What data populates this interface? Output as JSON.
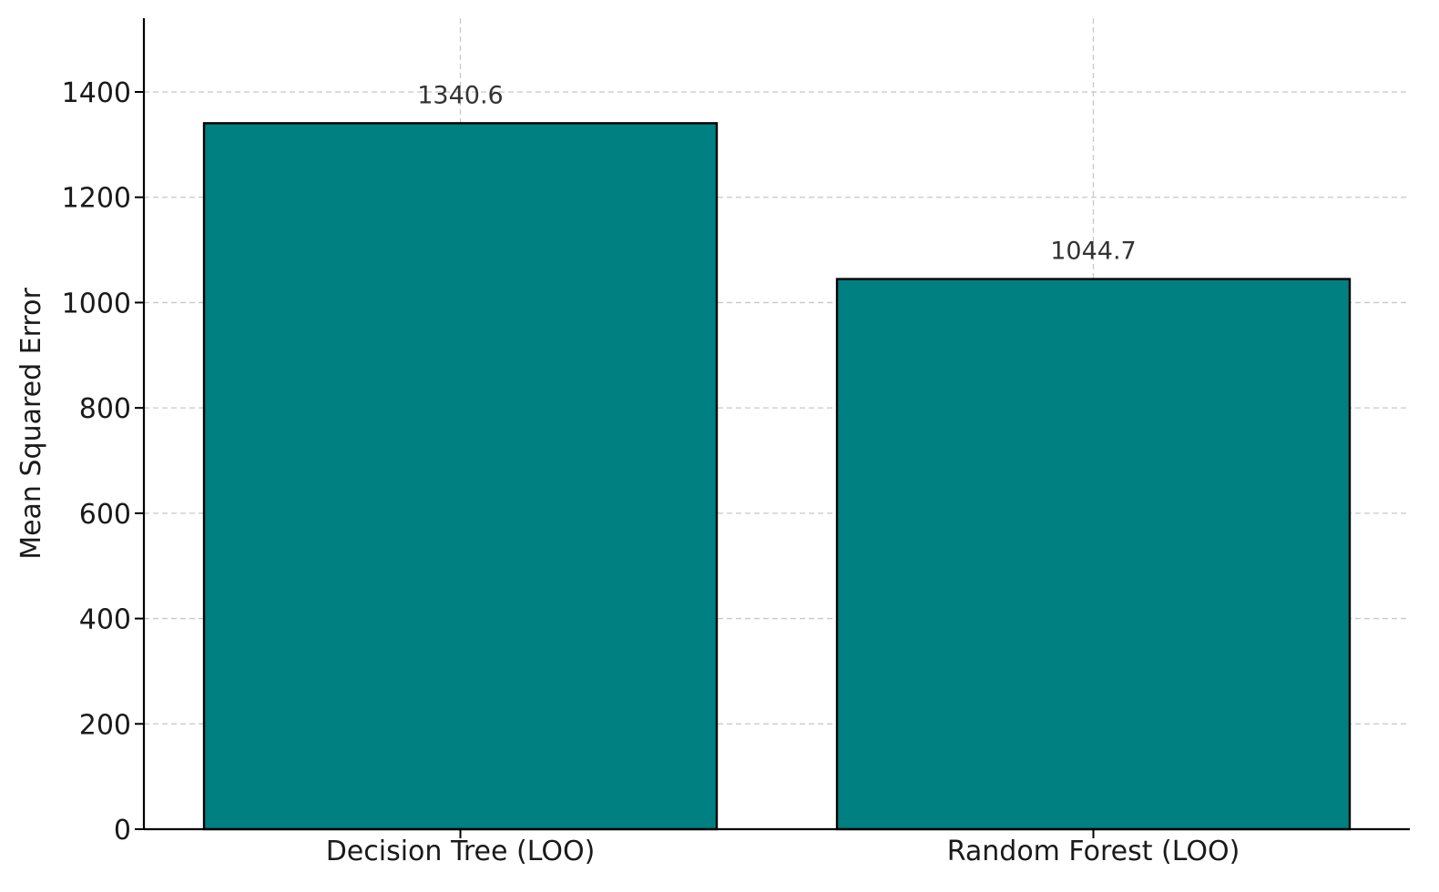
{
  "chart_data": {
    "type": "bar",
    "title": "",
    "xlabel": "",
    "ylabel": "Mean Squared Error",
    "categories": [
      "Decision Tree (LOO)",
      "Random Forest (LOO)"
    ],
    "values": [
      1340.6,
      1044.7
    ],
    "value_labels": [
      "1340.6",
      "1044.7"
    ],
    "ylim": [
      0,
      1540
    ],
    "yticks": [
      0,
      200,
      400,
      600,
      800,
      1000,
      1200,
      1400
    ],
    "ytick_labels": [
      "0",
      "200",
      "400",
      "600",
      "800",
      "1000",
      "1200",
      "1400"
    ],
    "grid": true,
    "legend": "none",
    "colors": {
      "bar_fill": "#008080",
      "bar_edge": "#000000"
    }
  }
}
